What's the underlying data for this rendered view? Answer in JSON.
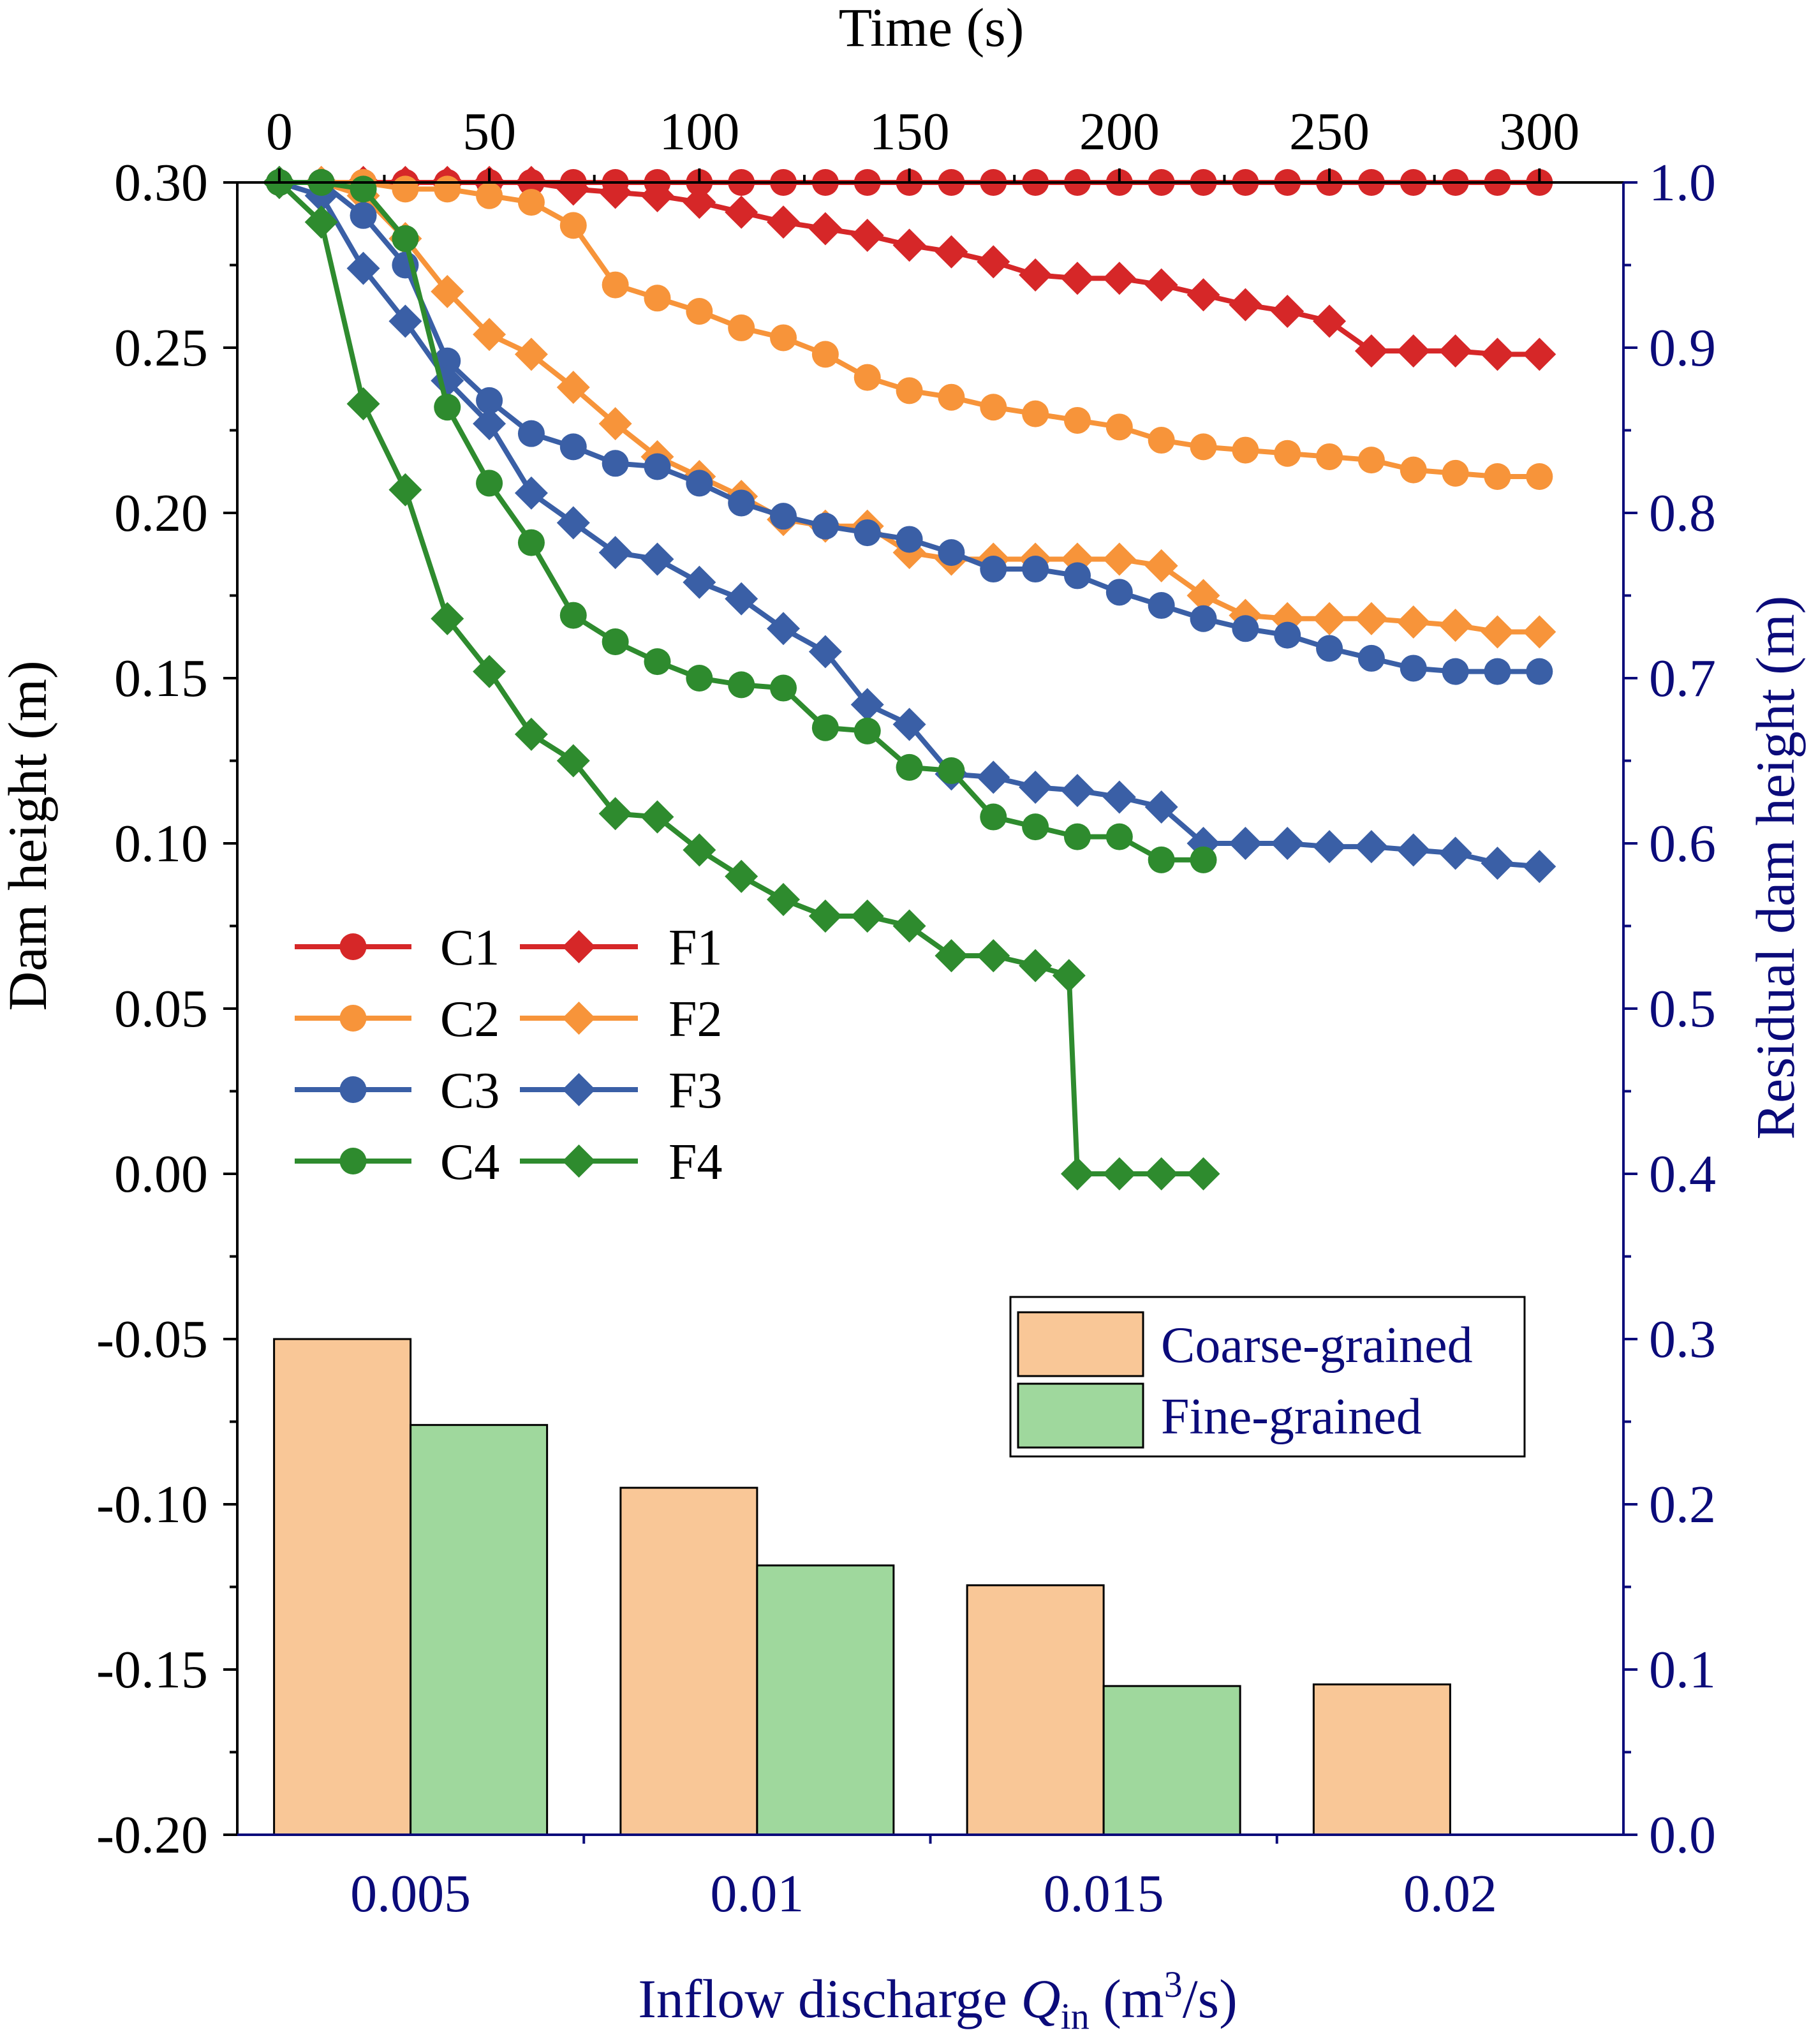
{
  "chart_data": {
    "type": "line+bar",
    "line_chart": {
      "top_axis": {
        "label": "Time (s)",
        "range": [
          -10,
          320
        ],
        "ticks": [
          "0",
          "50",
          "100",
          "150",
          "200",
          "250",
          "300"
        ],
        "tick_values": [
          0,
          50,
          100,
          150,
          200,
          250,
          300
        ]
      },
      "left_axis": {
        "label": "Dam height (m)",
        "range": [
          -0.2,
          0.3
        ],
        "ticks": [
          "-0.20",
          "-0.15",
          "-0.10",
          "-0.05",
          "0.00",
          "0.05",
          "0.10",
          "0.15",
          "0.20",
          "0.25",
          "0.30"
        ],
        "tick_values": [
          -0.2,
          -0.15,
          -0.1,
          -0.05,
          0.0,
          0.05,
          0.1,
          0.15,
          0.2,
          0.25,
          0.3
        ]
      },
      "series": [
        {
          "name": "C1",
          "marker": "circle",
          "color": "#d62728",
          "x": [
            0,
            10,
            20,
            30,
            40,
            50,
            60,
            70,
            80,
            90,
            100,
            110,
            120,
            130,
            140,
            150,
            160,
            170,
            180,
            190,
            200,
            210,
            220,
            230,
            240,
            250,
            260,
            270,
            280,
            290,
            300
          ],
          "y": [
            0.3,
            0.3,
            0.3,
            0.3,
            0.3,
            0.3,
            0.3,
            0.3,
            0.3,
            0.3,
            0.3,
            0.3,
            0.3,
            0.3,
            0.3,
            0.3,
            0.3,
            0.3,
            0.3,
            0.3,
            0.3,
            0.3,
            0.3,
            0.3,
            0.3,
            0.3,
            0.3,
            0.3,
            0.3,
            0.3,
            0.3
          ]
        },
        {
          "name": "F1",
          "marker": "diamond",
          "color": "#d62728",
          "x": [
            0,
            10,
            20,
            30,
            40,
            50,
            60,
            70,
            80,
            90,
            100,
            110,
            120,
            130,
            140,
            150,
            160,
            170,
            180,
            190,
            200,
            210,
            220,
            230,
            240,
            250,
            260,
            270,
            280,
            290,
            300
          ],
          "y": [
            0.3,
            0.3,
            0.3,
            0.3,
            0.3,
            0.3,
            0.3,
            0.298,
            0.297,
            0.296,
            0.294,
            0.291,
            0.288,
            0.286,
            0.284,
            0.281,
            0.279,
            0.276,
            0.272,
            0.271,
            0.271,
            0.269,
            0.266,
            0.263,
            0.261,
            0.258,
            0.249,
            0.249,
            0.249,
            0.248,
            0.248
          ]
        },
        {
          "name": "C2",
          "marker": "circle",
          "color": "#f7943a",
          "x": [
            0,
            10,
            20,
            30,
            40,
            50,
            60,
            70,
            80,
            90,
            100,
            110,
            120,
            130,
            140,
            150,
            160,
            170,
            180,
            190,
            200,
            210,
            220,
            230,
            240,
            250,
            260,
            270,
            280,
            290,
            300
          ],
          "y": [
            0.3,
            0.3,
            0.3,
            0.298,
            0.298,
            0.296,
            0.294,
            0.287,
            0.269,
            0.265,
            0.261,
            0.256,
            0.253,
            0.248,
            0.241,
            0.237,
            0.235,
            0.232,
            0.23,
            0.228,
            0.226,
            0.222,
            0.22,
            0.219,
            0.218,
            0.217,
            0.216,
            0.213,
            0.212,
            0.211,
            0.211
          ]
        },
        {
          "name": "F2",
          "marker": "diamond",
          "color": "#f7943a",
          "x": [
            0,
            10,
            20,
            30,
            40,
            50,
            60,
            70,
            80,
            90,
            100,
            110,
            120,
            130,
            140,
            150,
            160,
            170,
            180,
            190,
            200,
            210,
            220,
            230,
            240,
            250,
            260,
            270,
            280,
            290,
            300
          ],
          "y": [
            0.3,
            0.3,
            0.296,
            0.283,
            0.267,
            0.254,
            0.248,
            0.238,
            0.227,
            0.217,
            0.211,
            0.205,
            0.198,
            0.196,
            0.196,
            0.188,
            0.186,
            0.186,
            0.186,
            0.186,
            0.186,
            0.184,
            0.175,
            0.169,
            0.168,
            0.168,
            0.168,
            0.167,
            0.166,
            0.164,
            0.164
          ]
        },
        {
          "name": "C3",
          "marker": "circle",
          "color": "#3a5fa6",
          "x": [
            0,
            10,
            20,
            30,
            40,
            50,
            60,
            70,
            80,
            90,
            100,
            110,
            120,
            130,
            140,
            150,
            160,
            170,
            180,
            190,
            200,
            210,
            220,
            230,
            240,
            250,
            260,
            270,
            280,
            290,
            300
          ],
          "y": [
            0.3,
            0.3,
            0.29,
            0.275,
            0.246,
            0.234,
            0.224,
            0.22,
            0.215,
            0.214,
            0.209,
            0.203,
            0.199,
            0.196,
            0.194,
            0.192,
            0.188,
            0.183,
            0.183,
            0.181,
            0.176,
            0.172,
            0.168,
            0.165,
            0.163,
            0.159,
            0.156,
            0.153,
            0.152,
            0.152,
            0.152
          ]
        },
        {
          "name": "F3",
          "marker": "diamond",
          "color": "#3a5fa6",
          "x": [
            0,
            10,
            20,
            30,
            40,
            50,
            60,
            70,
            80,
            90,
            100,
            110,
            120,
            130,
            140,
            150,
            160,
            170,
            180,
            190,
            200,
            210,
            220,
            230,
            240,
            250,
            260,
            270,
            280,
            290,
            300
          ],
          "y": [
            0.3,
            0.296,
            0.274,
            0.258,
            0.24,
            0.227,
            0.206,
            0.197,
            0.188,
            0.186,
            0.179,
            0.174,
            0.165,
            0.158,
            0.142,
            0.136,
            0.121,
            0.12,
            0.117,
            0.116,
            0.114,
            0.111,
            0.1,
            0.1,
            0.1,
            0.099,
            0.099,
            0.098,
            0.097,
            0.094,
            0.093
          ]
        },
        {
          "name": "C4",
          "marker": "circle",
          "color": "#2e8b2e",
          "x": [
            0,
            10,
            20,
            30,
            40,
            50,
            60,
            70,
            80,
            90,
            100,
            110,
            120,
            130,
            140,
            150,
            160,
            170,
            180,
            190,
            200,
            210,
            220
          ],
          "y": [
            0.3,
            0.3,
            0.298,
            0.283,
            0.232,
            0.209,
            0.191,
            0.169,
            0.161,
            0.155,
            0.15,
            0.148,
            0.147,
            0.135,
            0.134,
            0.123,
            0.122,
            0.108,
            0.105,
            0.102,
            0.102,
            0.095,
            0.095
          ]
        },
        {
          "name": "F4",
          "marker": "diamond",
          "color": "#2e8b2e",
          "x": [
            0,
            10,
            20,
            30,
            40,
            50,
            60,
            70,
            80,
            90,
            100,
            110,
            120,
            130,
            140,
            150,
            160,
            170,
            180,
            188,
            190,
            200,
            210,
            220
          ],
          "y": [
            0.3,
            0.288,
            0.233,
            0.207,
            0.168,
            0.152,
            0.133,
            0.125,
            0.109,
            0.108,
            0.098,
            0.09,
            0.083,
            0.078,
            0.078,
            0.075,
            0.066,
            0.066,
            0.063,
            0.06,
            0.0,
            0.0,
            0.0,
            0.0
          ]
        }
      ]
    },
    "bar_chart": {
      "xlabel_prefix": "Inflow discharge ",
      "xlabel_var": "Q",
      "xlabel_sub": "in",
      "xlabel_unit_open": " (m",
      "xlabel_sup": "3",
      "xlabel_unit_close": "/s)",
      "ylabel": "Residual dam height (m)",
      "ylim": [
        0.0,
        1.0
      ],
      "right_ticks": [
        "0.0",
        "0.1",
        "0.2",
        "0.3",
        "0.4",
        "0.5",
        "0.6",
        "0.7",
        "0.8",
        "0.9",
        "1.0"
      ],
      "right_tick_values": [
        0.0,
        0.1,
        0.2,
        0.3,
        0.4,
        0.5,
        0.6,
        0.7,
        0.8,
        0.9,
        1.0
      ],
      "categories": [
        "0.005",
        "0.01",
        "0.015",
        "0.02"
      ],
      "series": [
        {
          "name": "Coarse-grained",
          "color": "#f9c797",
          "values": [
            0.3,
            0.21,
            0.151,
            0.091
          ]
        },
        {
          "name": "Fine-grained",
          "color": "#9fd89d",
          "values": [
            0.248,
            0.163,
            0.09,
            0.0
          ]
        }
      ]
    },
    "line_legend": [
      "C1",
      "F1",
      "C2",
      "F2",
      "C3",
      "F3",
      "C4",
      "F4"
    ],
    "bar_legend": [
      "Coarse-grained",
      "Fine-grained"
    ]
  }
}
